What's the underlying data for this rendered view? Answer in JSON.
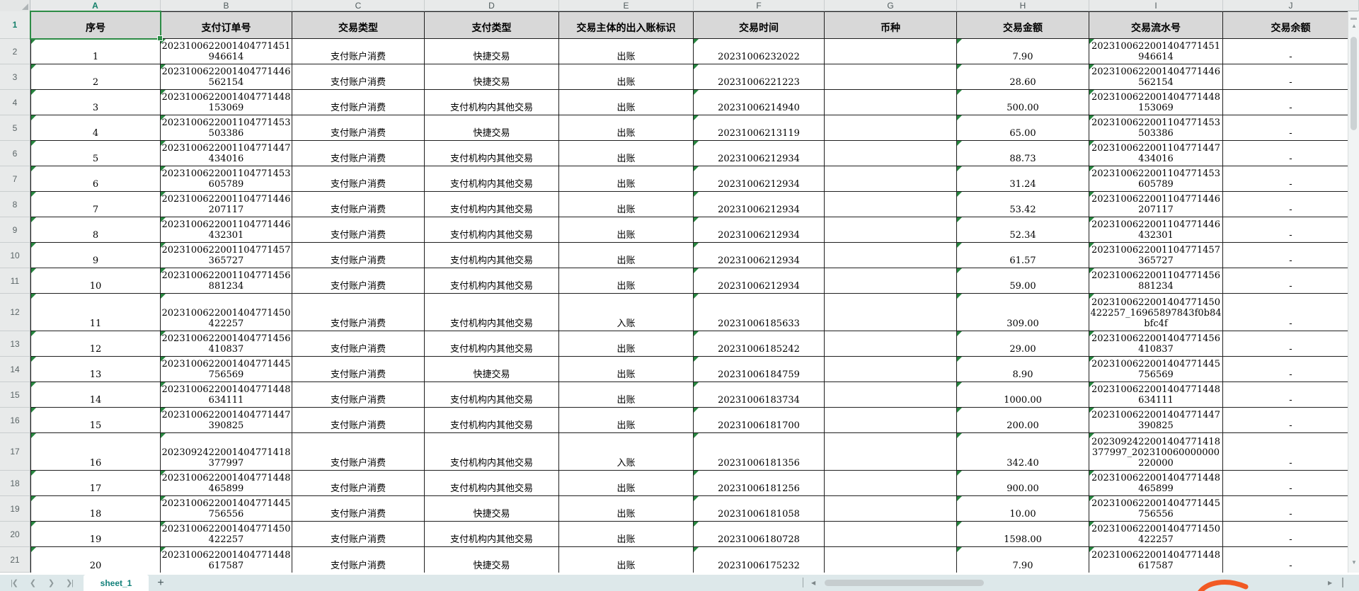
{
  "sheet": {
    "columns": [
      "A",
      "B",
      "C",
      "D",
      "E",
      "F",
      "G",
      "H",
      "I",
      "J"
    ],
    "selected_cell": "A1",
    "selected_column": "A",
    "selected_row": 1,
    "headers": [
      "序号",
      "支付订单号",
      "交易类型",
      "支付类型",
      "交易主体的出入账标识",
      "交易时间",
      "币种",
      "交易金额",
      "交易流水号",
      "交易余额"
    ],
    "rows": [
      {
        "seq": "1",
        "order_no": "2023100622001404771451946614",
        "txn_type": "支付账户消费",
        "pay_type": "快捷交易",
        "inout": "出账",
        "time": "20231006232022",
        "currency": "",
        "amount": "7.90",
        "serial_no": "2023100622001404771451946614",
        "balance": "-"
      },
      {
        "seq": "2",
        "order_no": "2023100622001404771446562154",
        "txn_type": "支付账户消费",
        "pay_type": "快捷交易",
        "inout": "出账",
        "time": "20231006221223",
        "currency": "",
        "amount": "28.60",
        "serial_no": "2023100622001404771446562154",
        "balance": "-"
      },
      {
        "seq": "3",
        "order_no": "2023100622001404771448153069",
        "txn_type": "支付账户消费",
        "pay_type": "支付机构内其他交易",
        "inout": "出账",
        "time": "20231006214940",
        "currency": "",
        "amount": "500.00",
        "serial_no": "2023100622001404771448153069",
        "balance": "-"
      },
      {
        "seq": "4",
        "order_no": "2023100622001104771453503386",
        "txn_type": "支付账户消费",
        "pay_type": "快捷交易",
        "inout": "出账",
        "time": "20231006213119",
        "currency": "",
        "amount": "65.00",
        "serial_no": "2023100622001104771453503386",
        "balance": "-"
      },
      {
        "seq": "5",
        "order_no": "2023100622001104771447434016",
        "txn_type": "支付账户消费",
        "pay_type": "支付机构内其他交易",
        "inout": "出账",
        "time": "20231006212934",
        "currency": "",
        "amount": "88.73",
        "serial_no": "2023100622001104771447434016",
        "balance": "-"
      },
      {
        "seq": "6",
        "order_no": "2023100622001104771453605789",
        "txn_type": "支付账户消费",
        "pay_type": "支付机构内其他交易",
        "inout": "出账",
        "time": "20231006212934",
        "currency": "",
        "amount": "31.24",
        "serial_no": "2023100622001104771453605789",
        "balance": "-"
      },
      {
        "seq": "7",
        "order_no": "2023100622001104771446207117",
        "txn_type": "支付账户消费",
        "pay_type": "支付机构内其他交易",
        "inout": "出账",
        "time": "20231006212934",
        "currency": "",
        "amount": "53.42",
        "serial_no": "2023100622001104771446207117",
        "balance": "-"
      },
      {
        "seq": "8",
        "order_no": "2023100622001104771446432301",
        "txn_type": "支付账户消费",
        "pay_type": "支付机构内其他交易",
        "inout": "出账",
        "time": "20231006212934",
        "currency": "",
        "amount": "52.34",
        "serial_no": "2023100622001104771446432301",
        "balance": "-"
      },
      {
        "seq": "9",
        "order_no": "2023100622001104771457365727",
        "txn_type": "支付账户消费",
        "pay_type": "支付机构内其他交易",
        "inout": "出账",
        "time": "20231006212934",
        "currency": "",
        "amount": "61.57",
        "serial_no": "2023100622001104771457365727",
        "balance": "-"
      },
      {
        "seq": "10",
        "order_no": "2023100622001104771456881234",
        "txn_type": "支付账户消费",
        "pay_type": "支付机构内其他交易",
        "inout": "出账",
        "time": "20231006212934",
        "currency": "",
        "amount": "59.00",
        "serial_no": "2023100622001104771456881234",
        "balance": "-"
      },
      {
        "seq": "11",
        "order_no": "2023100622001404771450422257",
        "txn_type": "支付账户消费",
        "pay_type": "支付机构内其他交易",
        "inout": "入账",
        "time": "20231006185633",
        "currency": "",
        "amount": "309.00",
        "serial_no": "2023100622001404771450422257_16965897843f0b84bfc4f",
        "balance": "-"
      },
      {
        "seq": "12",
        "order_no": "2023100622001404771456410837",
        "txn_type": "支付账户消费",
        "pay_type": "支付机构内其他交易",
        "inout": "出账",
        "time": "20231006185242",
        "currency": "",
        "amount": "29.00",
        "serial_no": "2023100622001404771456410837",
        "balance": "-"
      },
      {
        "seq": "13",
        "order_no": "2023100622001404771445756569",
        "txn_type": "支付账户消费",
        "pay_type": "快捷交易",
        "inout": "出账",
        "time": "20231006184759",
        "currency": "",
        "amount": "8.90",
        "serial_no": "2023100622001404771445756569",
        "balance": "-"
      },
      {
        "seq": "14",
        "order_no": "2023100622001404771448634111",
        "txn_type": "支付账户消费",
        "pay_type": "支付机构内其他交易",
        "inout": "出账",
        "time": "20231006183734",
        "currency": "",
        "amount": "1000.00",
        "serial_no": "2023100622001404771448634111",
        "balance": "-"
      },
      {
        "seq": "15",
        "order_no": "2023100622001404771447390825",
        "txn_type": "支付账户消费",
        "pay_type": "支付机构内其他交易",
        "inout": "出账",
        "time": "20231006181700",
        "currency": "",
        "amount": "200.00",
        "serial_no": "2023100622001404771447390825",
        "balance": "-"
      },
      {
        "seq": "16",
        "order_no": "2023092422001404771418377997",
        "txn_type": "支付账户消费",
        "pay_type": "支付机构内其他交易",
        "inout": "入账",
        "time": "20231006181356",
        "currency": "",
        "amount": "342.40",
        "serial_no": "2023092422001404771418377997_202310060000000220000",
        "balance": "-"
      },
      {
        "seq": "17",
        "order_no": "2023100622001404771448465899",
        "txn_type": "支付账户消费",
        "pay_type": "支付机构内其他交易",
        "inout": "出账",
        "time": "20231006181256",
        "currency": "",
        "amount": "900.00",
        "serial_no": "2023100622001404771448465899",
        "balance": "-"
      },
      {
        "seq": "18",
        "order_no": "2023100622001404771445756556",
        "txn_type": "支付账户消费",
        "pay_type": "快捷交易",
        "inout": "出账",
        "time": "20231006181058",
        "currency": "",
        "amount": "10.00",
        "serial_no": "2023100622001404771445756556",
        "balance": "-"
      },
      {
        "seq": "19",
        "order_no": "2023100622001404771450422257",
        "txn_type": "支付账户消费",
        "pay_type": "支付机构内其他交易",
        "inout": "出账",
        "time": "20231006180728",
        "currency": "",
        "amount": "1598.00",
        "serial_no": "2023100622001404771450422257",
        "balance": "-"
      },
      {
        "seq": "20",
        "order_no": "2023100622001404771448617587",
        "txn_type": "支付账户消费",
        "pay_type": "快捷交易",
        "inout": "出账",
        "time": "20231006175232",
        "currency": "",
        "amount": "7.90",
        "serial_no": "2023100622001404771448617587",
        "balance": "-"
      }
    ]
  },
  "tabbar": {
    "sheet_label": "sheet_1",
    "add_label": "+"
  },
  "icons": {
    "nav_first": "|❮",
    "nav_prev": "❮",
    "nav_next": "❯",
    "nav_last": "❯|",
    "scroll_up": "▲",
    "scroll_down": "▼",
    "hscroll_left": "◀",
    "hscroll_right": "▶"
  },
  "colors": {
    "selection_green": "#2d8c46",
    "flag_green": "#27853f",
    "tab_text_teal": "#12807a",
    "header_fill": "#d8d8d8",
    "logo_orange": "#f15a24"
  }
}
